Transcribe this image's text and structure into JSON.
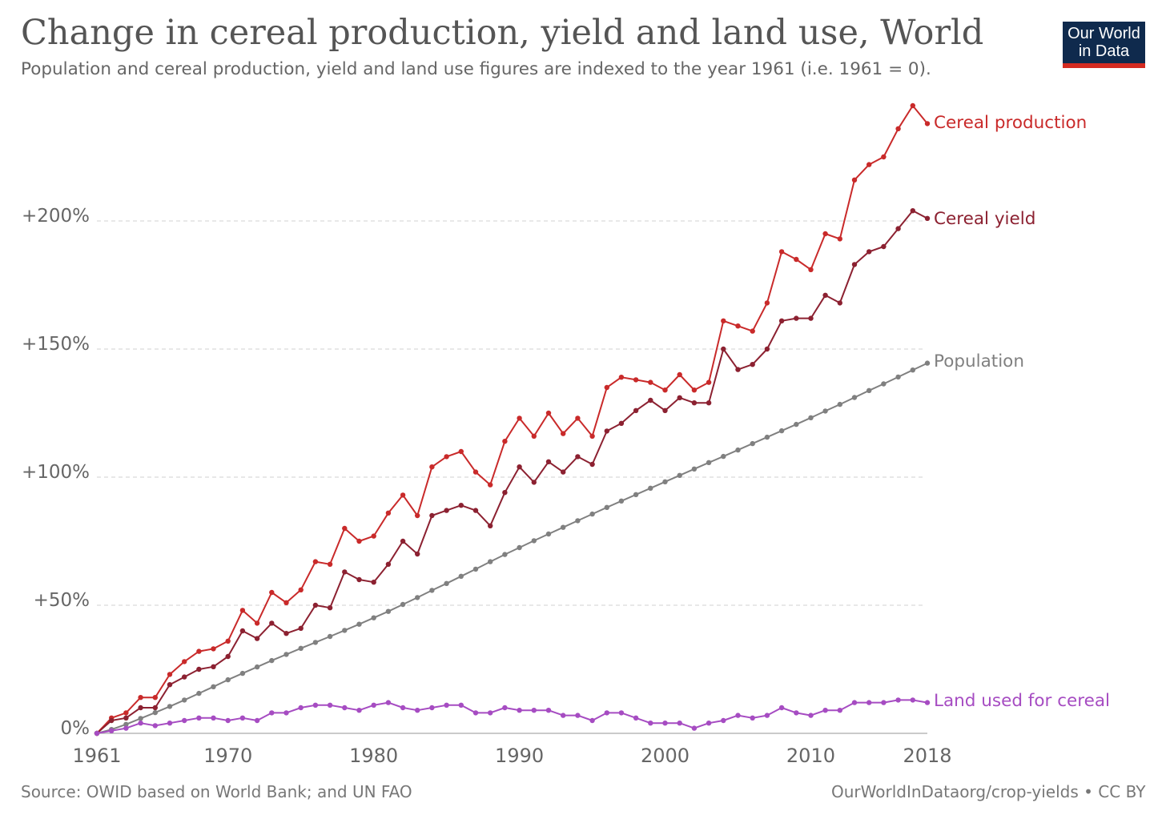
{
  "header": {
    "title": "Change in cereal production, yield and land use, World",
    "subtitle": "Population and cereal production, yield and land use figures are indexed to the year 1961 (i.e. 1961 = 0)."
  },
  "logo": {
    "line1": "Our World",
    "line2": "in Data",
    "bg_color": "#0f2a4d",
    "accent_color": "#d42b21"
  },
  "footer": {
    "source": "Source: OWID based on World Bank; and UN FAO",
    "url": "OurWorldInDataorg/crop-yields • CC BY"
  },
  "chart_data": {
    "type": "line",
    "ylim": [
      0,
      250
    ],
    "xlim": [
      1961,
      2018
    ],
    "y_ticks": [
      {
        "value": 0,
        "label": "0%"
      },
      {
        "value": 50,
        "label": "+50%"
      },
      {
        "value": 100,
        "label": "+100%"
      },
      {
        "value": 150,
        "label": "+150%"
      },
      {
        "value": 200,
        "label": "+200%"
      }
    ],
    "x_ticks": [
      1961,
      1970,
      1980,
      1990,
      2000,
      2010,
      2018
    ],
    "grid": "horizontal dashed",
    "legend": "labels at line ends (right)",
    "x": [
      1961,
      1962,
      1963,
      1964,
      1965,
      1966,
      1967,
      1968,
      1969,
      1970,
      1971,
      1972,
      1973,
      1974,
      1975,
      1976,
      1977,
      1978,
      1979,
      1980,
      1981,
      1982,
      1983,
      1984,
      1985,
      1986,
      1987,
      1988,
      1989,
      1990,
      1991,
      1992,
      1993,
      1994,
      1995,
      1996,
      1997,
      1998,
      1999,
      2000,
      2001,
      2002,
      2003,
      2004,
      2005,
      2006,
      2007,
      2008,
      2009,
      2010,
      2011,
      2012,
      2013,
      2014,
      2015,
      2016,
      2017,
      2018
    ],
    "series": [
      {
        "name": "Cereal production",
        "color": "#c92a2a",
        "values": [
          0,
          6,
          8,
          14,
          14,
          23,
          28,
          32,
          33,
          36,
          48,
          43,
          55,
          51,
          56,
          67,
          66,
          80,
          75,
          77,
          86,
          93,
          85,
          104,
          108,
          110,
          102,
          97,
          114,
          123,
          116,
          125,
          117,
          123,
          116,
          135,
          139,
          138,
          137,
          134,
          140,
          134,
          137,
          161,
          159,
          157,
          168,
          188,
          185,
          181,
          195,
          193,
          216,
          222,
          225,
          236,
          245,
          238
        ]
      },
      {
        "name": "Cereal yield",
        "color": "#8c2131",
        "values": [
          0,
          5,
          6,
          10,
          10,
          19,
          22,
          25,
          26,
          30,
          40,
          37,
          43,
          39,
          41,
          50,
          49,
          63,
          60,
          59,
          66,
          75,
          70,
          85,
          87,
          89,
          87,
          81,
          94,
          104,
          98,
          106,
          102,
          108,
          105,
          118,
          121,
          126,
          130,
          126,
          131,
          129,
          129,
          150,
          142,
          144,
          150,
          161,
          162,
          162,
          171,
          168,
          183,
          188,
          190,
          197,
          204,
          201
        ]
      },
      {
        "name": "Population",
        "color": "#808080",
        "values": [
          0,
          1.5,
          3.5,
          5.8,
          8.1,
          10.5,
          13,
          15.6,
          18.2,
          20.9,
          23.4,
          25.9,
          28.4,
          30.8,
          33.2,
          35.5,
          37.8,
          40.2,
          42.6,
          45.1,
          47.6,
          50.3,
          53,
          55.8,
          58.5,
          61.3,
          64.1,
          67,
          69.8,
          72.5,
          75.2,
          77.8,
          80.4,
          83,
          85.6,
          88.2,
          90.7,
          93.2,
          95.7,
          98.2,
          100.7,
          103.2,
          105.7,
          108.1,
          110.6,
          113.1,
          115.6,
          118.1,
          120.6,
          123.2,
          125.8,
          128.4,
          131.1,
          133.8,
          136.4,
          139.1,
          141.8,
          144.5
        ]
      },
      {
        "name": "Land used for cereal",
        "color": "#a64cc2",
        "values": [
          0,
          1,
          2,
          4,
          3,
          4,
          5,
          6,
          6,
          5,
          6,
          5,
          8,
          8,
          10,
          11,
          11,
          10,
          9,
          11,
          12,
          10,
          9,
          10,
          11,
          11,
          8,
          8,
          10,
          9,
          9,
          9,
          7,
          7,
          5,
          8,
          8,
          6,
          4,
          4,
          4,
          2,
          4,
          5,
          7,
          6,
          7,
          10,
          8,
          7,
          9,
          9,
          12,
          12,
          12,
          13,
          13,
          12
        ]
      }
    ]
  }
}
